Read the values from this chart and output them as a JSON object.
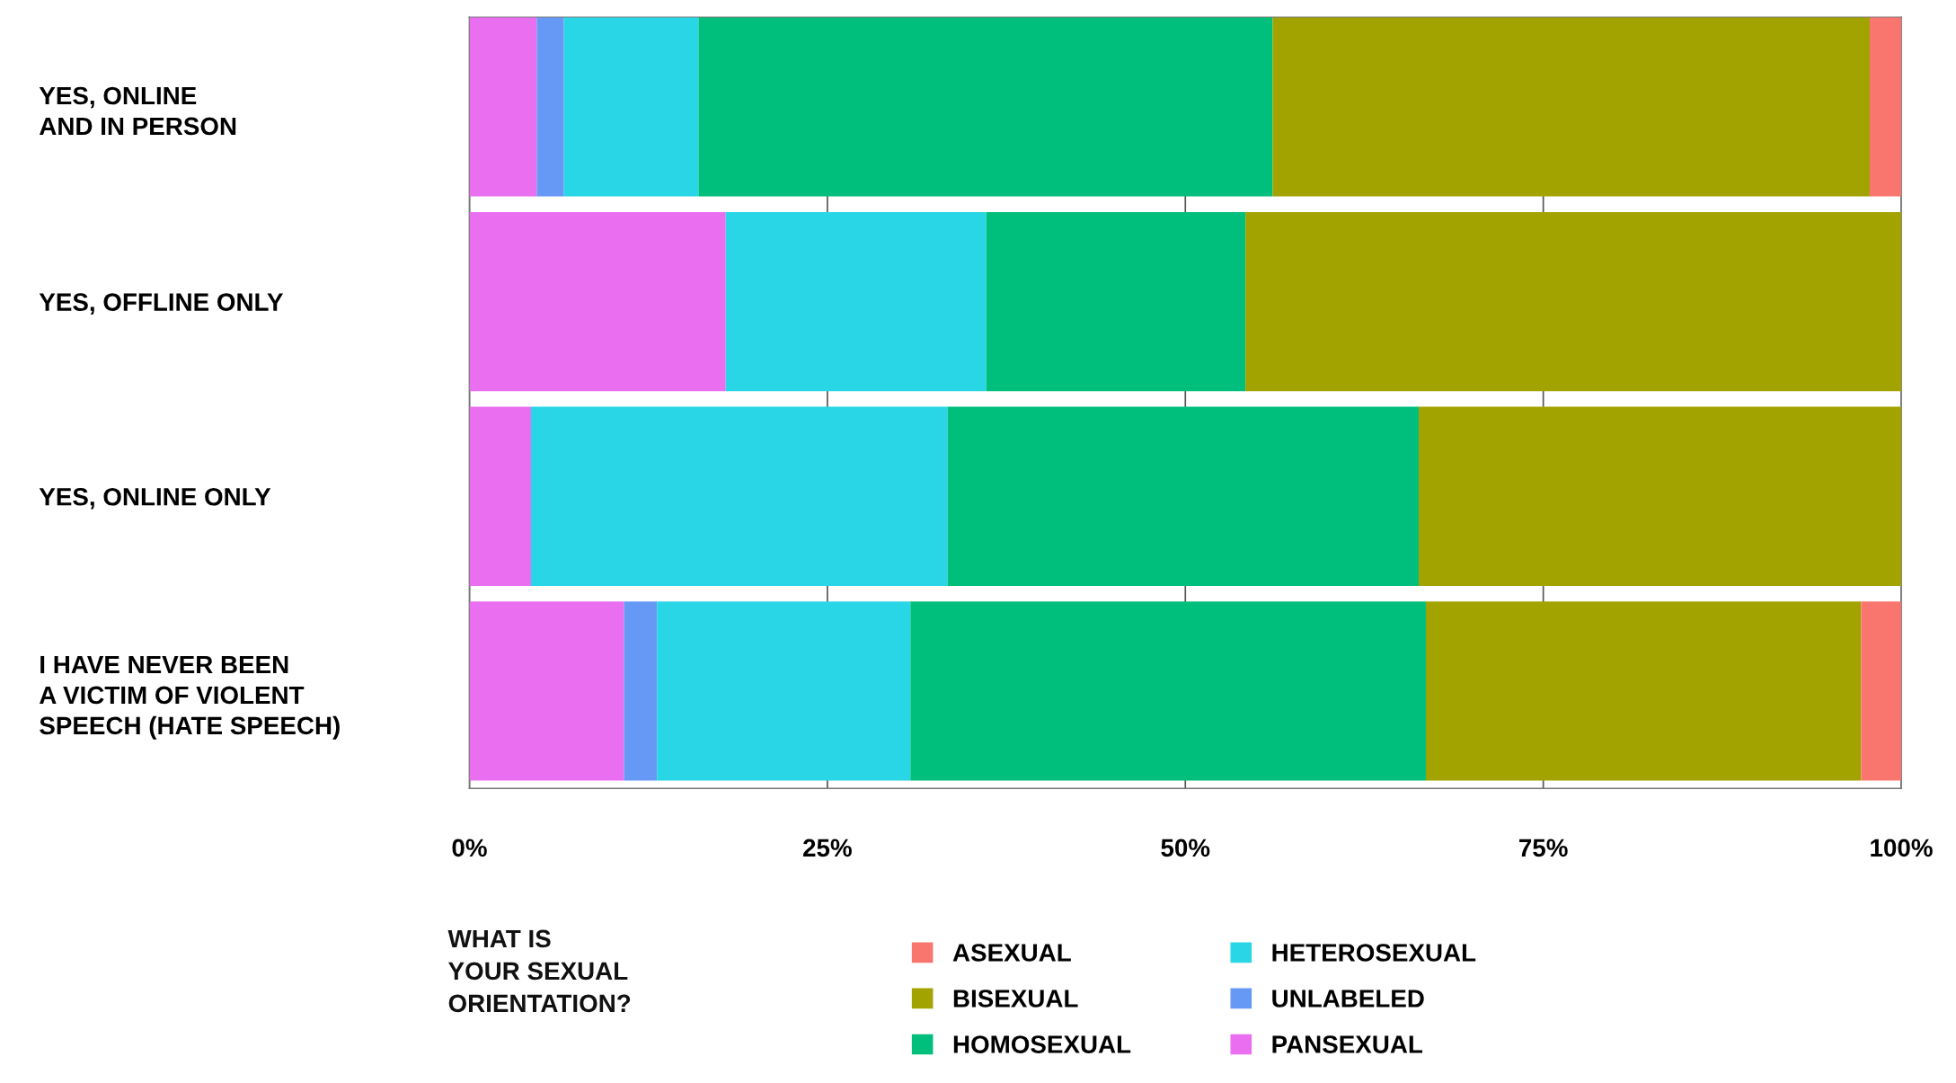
{
  "chart_data": {
    "type": "bar",
    "orientation": "horizontal",
    "stacked": true,
    "categories": [
      "YES, ONLINE\nAND IN PERSON",
      "YES, OFFLINE ONLY",
      "YES, ONLINE ONLY",
      "I HAVE NEVER BEEN\nA VICTIM OF VIOLENT\nSPEECH (HATE SPEECH)"
    ],
    "series": [
      {
        "name": "PANSEXUAL",
        "color": "#e96ef0",
        "values": [
          4.7,
          17.9,
          4.3,
          10.8
        ]
      },
      {
        "name": "UNLABELED",
        "color": "#6699f5",
        "values": [
          1.9,
          0,
          0,
          2.3
        ]
      },
      {
        "name": "HETEROSEXUAL",
        "color": "#29d6e6",
        "values": [
          9.4,
          18.2,
          29.1,
          17.7
        ]
      },
      {
        "name": "HOMOSEXUAL",
        "color": "#00bf7d",
        "values": [
          40.1,
          18.1,
          32.9,
          36.0
        ]
      },
      {
        "name": "BISEXUAL",
        "color": "#a3a300",
        "values": [
          41.7,
          45.8,
          33.7,
          30.4
        ]
      },
      {
        "name": "ASEXUAL",
        "color": "#f8766d",
        "values": [
          2.2,
          0,
          0,
          2.8
        ]
      }
    ],
    "xlim": [
      0,
      100
    ],
    "xticks": [
      {
        "value": 0,
        "label": "0%"
      },
      {
        "value": 25,
        "label": "25%"
      },
      {
        "value": 50,
        "label": "50%"
      },
      {
        "value": 75,
        "label": "75%"
      },
      {
        "value": 100,
        "label": "100%"
      }
    ],
    "grid": "x",
    "legend": "bottom",
    "legend_title": "WHAT IS\nYOUR SEXUAL\nORIENTATION?"
  }
}
